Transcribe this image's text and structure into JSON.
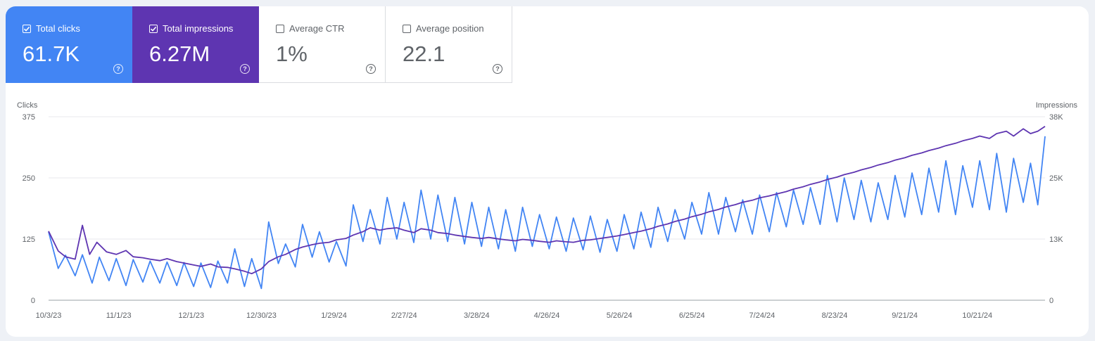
{
  "metrics": {
    "clicks": {
      "label": "Total clicks",
      "value": "61.7K",
      "selected": true,
      "color": "#4285f4"
    },
    "impressions": {
      "label": "Total impressions",
      "value": "6.27M",
      "selected": true,
      "color": "#5e35b1"
    },
    "ctr": {
      "label": "Average CTR",
      "value": "1%",
      "selected": false
    },
    "position": {
      "label": "Average position",
      "value": "22.1",
      "selected": false
    },
    "help_glyph": "?"
  },
  "chart_data": {
    "type": "line",
    "ylabel_left": "Clicks",
    "ylabel_right": "Impressions",
    "ylim_left": [
      0,
      375
    ],
    "ylim_right": [
      0,
      38000
    ],
    "yticks_left": [
      "0",
      "125",
      "250",
      "375"
    ],
    "yticks_right": [
      "0",
      "13K",
      "25K",
      "38K"
    ],
    "x_start": "10/3/23",
    "x_end": "11/18/24",
    "xticks": [
      "10/3/23",
      "11/1/23",
      "12/1/23",
      "12/30/23",
      "1/29/24",
      "2/27/24",
      "3/28/24",
      "4/26/24",
      "5/26/24",
      "6/25/24",
      "7/24/24",
      "8/23/24",
      "9/21/24",
      "10/21/24"
    ],
    "grid": true,
    "series": [
      {
        "name": "Clicks",
        "axis": "left",
        "color": "#4285f4",
        "points": [
          [
            "10/3/23",
            140
          ],
          [
            "10/7/23",
            65
          ],
          [
            "10/10/23",
            92
          ],
          [
            "10/14/23",
            50
          ],
          [
            "10/17/23",
            93
          ],
          [
            "10/21/23",
            35
          ],
          [
            "10/24/23",
            88
          ],
          [
            "10/28/23",
            40
          ],
          [
            "10/31/23",
            85
          ],
          [
            "11/4/23",
            30
          ],
          [
            "11/7/23",
            83
          ],
          [
            "11/11/23",
            37
          ],
          [
            "11/14/23",
            80
          ],
          [
            "11/18/23",
            35
          ],
          [
            "11/21/23",
            78
          ],
          [
            "11/25/23",
            30
          ],
          [
            "11/28/23",
            77
          ],
          [
            "12/2/23",
            28
          ],
          [
            "12/5/23",
            76
          ],
          [
            "12/9/23",
            26
          ],
          [
            "12/12/23",
            80
          ],
          [
            "12/16/23",
            35
          ],
          [
            "12/19/23",
            105
          ],
          [
            "12/23/23",
            28
          ],
          [
            "12/26/23",
            85
          ],
          [
            "12/30/23",
            24
          ],
          [
            "1/2/24",
            160
          ],
          [
            "1/6/24",
            75
          ],
          [
            "1/9/24",
            115
          ],
          [
            "1/13/24",
            68
          ],
          [
            "1/16/24",
            155
          ],
          [
            "1/20/24",
            88
          ],
          [
            "1/23/24",
            140
          ],
          [
            "1/27/24",
            78
          ],
          [
            "1/30/24",
            120
          ],
          [
            "2/3/24",
            70
          ],
          [
            "2/6/24",
            195
          ],
          [
            "2/10/24",
            120
          ],
          [
            "2/13/24",
            185
          ],
          [
            "2/17/24",
            115
          ],
          [
            "2/20/24",
            210
          ],
          [
            "2/24/24",
            125
          ],
          [
            "2/27/24",
            200
          ],
          [
            "3/2/24",
            118
          ],
          [
            "3/5/24",
            225
          ],
          [
            "3/9/24",
            125
          ],
          [
            "3/12/24",
            215
          ],
          [
            "3/16/24",
            120
          ],
          [
            "3/19/24",
            210
          ],
          [
            "3/23/24",
            115
          ],
          [
            "3/26/24",
            200
          ],
          [
            "3/30/24",
            110
          ],
          [
            "4/2/24",
            190
          ],
          [
            "4/6/24",
            105
          ],
          [
            "4/9/24",
            185
          ],
          [
            "4/13/24",
            100
          ],
          [
            "4/16/24",
            190
          ],
          [
            "4/20/24",
            110
          ],
          [
            "4/23/24",
            175
          ],
          [
            "4/27/24",
            105
          ],
          [
            "4/30/24",
            170
          ],
          [
            "5/4/24",
            100
          ],
          [
            "5/7/24",
            168
          ],
          [
            "5/11/24",
            103
          ],
          [
            "5/14/24",
            172
          ],
          [
            "5/18/24",
            98
          ],
          [
            "5/21/24",
            165
          ],
          [
            "5/25/24",
            100
          ],
          [
            "5/28/24",
            175
          ],
          [
            "6/1/24",
            105
          ],
          [
            "6/4/24",
            180
          ],
          [
            "6/8/24",
            108
          ],
          [
            "6/11/24",
            190
          ],
          [
            "6/15/24",
            120
          ],
          [
            "6/18/24",
            185
          ],
          [
            "6/22/24",
            125
          ],
          [
            "6/25/24",
            200
          ],
          [
            "6/29/24",
            135
          ],
          [
            "7/2/24",
            220
          ],
          [
            "7/6/24",
            135
          ],
          [
            "7/9/24",
            210
          ],
          [
            "7/13/24",
            140
          ],
          [
            "7/16/24",
            205
          ],
          [
            "7/20/24",
            135
          ],
          [
            "7/23/24",
            215
          ],
          [
            "7/27/24",
            140
          ],
          [
            "7/30/24",
            220
          ],
          [
            "8/3/24",
            150
          ],
          [
            "8/6/24",
            225
          ],
          [
            "8/10/24",
            155
          ],
          [
            "8/13/24",
            230
          ],
          [
            "8/17/24",
            155
          ],
          [
            "8/20/24",
            255
          ],
          [
            "8/24/24",
            160
          ],
          [
            "8/27/24",
            250
          ],
          [
            "8/31/24",
            165
          ],
          [
            "9/3/24",
            245
          ],
          [
            "9/7/24",
            160
          ],
          [
            "9/10/24",
            240
          ],
          [
            "9/14/24",
            165
          ],
          [
            "9/17/24",
            255
          ],
          [
            "9/21/24",
            170
          ],
          [
            "9/24/24",
            260
          ],
          [
            "9/28/24",
            175
          ],
          [
            "10/1/24",
            270
          ],
          [
            "10/5/24",
            180
          ],
          [
            "10/8/24",
            285
          ],
          [
            "10/12/24",
            175
          ],
          [
            "10/15/24",
            275
          ],
          [
            "10/19/24",
            190
          ],
          [
            "10/22/24",
            285
          ],
          [
            "10/26/24",
            185
          ],
          [
            "10/29/24",
            300
          ],
          [
            "11/2/24",
            180
          ],
          [
            "11/5/24",
            290
          ],
          [
            "11/9/24",
            200
          ],
          [
            "11/12/24",
            280
          ],
          [
            "11/15/24",
            195
          ],
          [
            "11/18/24",
            335
          ]
        ]
      },
      {
        "name": "Impressions",
        "axis": "right",
        "color": "#5e35b1",
        "points": [
          [
            "10/3/23",
            14300
          ],
          [
            "10/7/23",
            10200
          ],
          [
            "10/10/23",
            9000
          ],
          [
            "10/14/23",
            8500
          ],
          [
            "10/17/23",
            15500
          ],
          [
            "10/20/23",
            9500
          ],
          [
            "10/23/23",
            12000
          ],
          [
            "10/27/23",
            10000
          ],
          [
            "10/31/23",
            9500
          ],
          [
            "11/4/23",
            10300
          ],
          [
            "11/7/23",
            9000
          ],
          [
            "11/11/23",
            8800
          ],
          [
            "11/14/23",
            8500
          ],
          [
            "11/18/23",
            8200
          ],
          [
            "11/21/23",
            8600
          ],
          [
            "11/25/23",
            8000
          ],
          [
            "11/28/23",
            7700
          ],
          [
            "12/2/23",
            7300
          ],
          [
            "12/5/23",
            7000
          ],
          [
            "12/9/23",
            7500
          ],
          [
            "12/12/23",
            6900
          ],
          [
            "12/16/23",
            6800
          ],
          [
            "12/19/23",
            6500
          ],
          [
            "12/23/23",
            6000
          ],
          [
            "12/26/23",
            5500
          ],
          [
            "12/30/23",
            6500
          ],
          [
            "1/2/24",
            8000
          ],
          [
            "1/6/24",
            9000
          ],
          [
            "1/9/24",
            9500
          ],
          [
            "1/13/24",
            10500
          ],
          [
            "1/16/24",
            11000
          ],
          [
            "1/20/24",
            11500
          ],
          [
            "1/23/24",
            11800
          ],
          [
            "1/27/24",
            12000
          ],
          [
            "1/30/24",
            12500
          ],
          [
            "2/3/24",
            12800
          ],
          [
            "2/6/24",
            13500
          ],
          [
            "2/10/24",
            14200
          ],
          [
            "2/13/24",
            15000
          ],
          [
            "2/17/24",
            14500
          ],
          [
            "2/20/24",
            14800
          ],
          [
            "2/24/24",
            15000
          ],
          [
            "2/27/24",
            14500
          ],
          [
            "3/2/24",
            14000
          ],
          [
            "3/5/24",
            14800
          ],
          [
            "3/9/24",
            14500
          ],
          [
            "3/12/24",
            14000
          ],
          [
            "3/16/24",
            13800
          ],
          [
            "3/19/24",
            13500
          ],
          [
            "3/23/24",
            13200
          ],
          [
            "3/26/24",
            13000
          ],
          [
            "3/30/24",
            12800
          ],
          [
            "4/2/24",
            13000
          ],
          [
            "4/6/24",
            12700
          ],
          [
            "4/9/24",
            12500
          ],
          [
            "4/13/24",
            12300
          ],
          [
            "4/16/24",
            12600
          ],
          [
            "4/20/24",
            12400
          ],
          [
            "4/23/24",
            12200
          ],
          [
            "4/27/24",
            12000
          ],
          [
            "4/30/24",
            12300
          ],
          [
            "5/4/24",
            12100
          ],
          [
            "5/7/24",
            12000
          ],
          [
            "5/11/24",
            12400
          ],
          [
            "5/14/24",
            12500
          ],
          [
            "5/18/24",
            12800
          ],
          [
            "5/21/24",
            13000
          ],
          [
            "5/25/24",
            13300
          ],
          [
            "5/28/24",
            13600
          ],
          [
            "6/1/24",
            14000
          ],
          [
            "6/4/24",
            14300
          ],
          [
            "6/8/24",
            14800
          ],
          [
            "6/11/24",
            15300
          ],
          [
            "6/15/24",
            15800
          ],
          [
            "6/18/24",
            16300
          ],
          [
            "6/22/24",
            16800
          ],
          [
            "6/25/24",
            17300
          ],
          [
            "6/29/24",
            17800
          ],
          [
            "7/2/24",
            18300
          ],
          [
            "7/6/24",
            18800
          ],
          [
            "7/9/24",
            19300
          ],
          [
            "7/13/24",
            19800
          ],
          [
            "7/16/24",
            20300
          ],
          [
            "7/20/24",
            20700
          ],
          [
            "7/23/24",
            21200
          ],
          [
            "7/27/24",
            21600
          ],
          [
            "7/30/24",
            22000
          ],
          [
            "8/3/24",
            22500
          ],
          [
            "8/6/24",
            23000
          ],
          [
            "8/10/24",
            23500
          ],
          [
            "8/13/24",
            24000
          ],
          [
            "8/17/24",
            24500
          ],
          [
            "8/20/24",
            25000
          ],
          [
            "8/24/24",
            25500
          ],
          [
            "8/27/24",
            26000
          ],
          [
            "8/31/24",
            26500
          ],
          [
            "9/3/24",
            27000
          ],
          [
            "9/7/24",
            27500
          ],
          [
            "9/10/24",
            28000
          ],
          [
            "9/14/24",
            28500
          ],
          [
            "9/17/24",
            29000
          ],
          [
            "9/21/24",
            29500
          ],
          [
            "9/24/24",
            30000
          ],
          [
            "9/28/24",
            30500
          ],
          [
            "10/1/24",
            31000
          ],
          [
            "10/5/24",
            31500
          ],
          [
            "10/8/24",
            32000
          ],
          [
            "10/12/24",
            32500
          ],
          [
            "10/15/24",
            33000
          ],
          [
            "10/19/24",
            33500
          ],
          [
            "10/22/24",
            34000
          ],
          [
            "10/26/24",
            33500
          ],
          [
            "10/29/24",
            34500
          ],
          [
            "11/2/24",
            35000
          ],
          [
            "11/5/24",
            34000
          ],
          [
            "11/9/24",
            35500
          ],
          [
            "11/12/24",
            34500
          ],
          [
            "11/15/24",
            35000
          ],
          [
            "11/18/24",
            36000
          ]
        ]
      }
    ]
  }
}
